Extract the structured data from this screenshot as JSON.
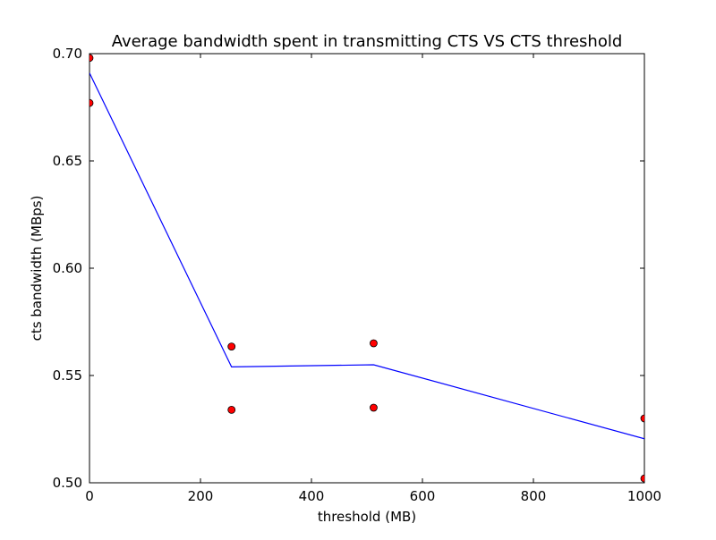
{
  "chart_data": {
    "type": "scatter",
    "title": "Average bandwidth spent in transmitting CTS VS CTS threshold",
    "xlabel": "threshold (MB)",
    "ylabel": "cts bandwidth (MBps)",
    "xlim": [
      0,
      1000
    ],
    "ylim": [
      0.5,
      0.7
    ],
    "x_ticks": [
      0,
      200,
      400,
      600,
      800,
      1000
    ],
    "x_tick_labels": [
      "0",
      "200",
      "400",
      "600",
      "800",
      "1000"
    ],
    "y_ticks": [
      0.5,
      0.55,
      0.6,
      0.65,
      0.7
    ],
    "y_tick_labels": [
      "0.50",
      "0.55",
      "0.60",
      "0.65",
      "0.70"
    ],
    "grid": false,
    "legend": "none",
    "series": [
      {
        "type": "line",
        "color": "#0000ff",
        "x": [
          0,
          256,
          512,
          1000
        ],
        "y": [
          0.691,
          0.554,
          0.555,
          0.5205
        ]
      },
      {
        "type": "scatter",
        "color": "#ff0000",
        "edge_color": "#000000",
        "x": [
          0,
          0,
          256,
          256,
          512,
          512,
          1000,
          1000
        ],
        "y": [
          0.698,
          0.677,
          0.5635,
          0.534,
          0.565,
          0.535,
          0.53,
          0.502
        ]
      }
    ]
  }
}
